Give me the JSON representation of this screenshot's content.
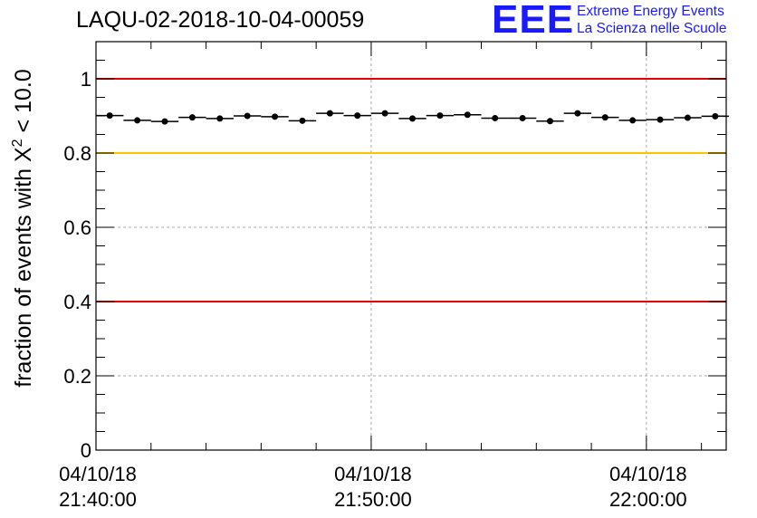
{
  "header": {
    "run_title": "LAQU-02-2018-10-04-00059",
    "logo_mark": "EEE",
    "logo_line1": "Extreme Energy Events",
    "logo_line2": "La Scienza nelle Scuole"
  },
  "colors": {
    "threshold_red": "#e00000",
    "threshold_yellow": "#ffc400",
    "logo_blue": "#1a1aff",
    "points": "#000000"
  },
  "chart_data": {
    "type": "scatter",
    "title": "LAQU-02-2018-10-04-00059",
    "xlabel": "",
    "ylabel_prefix": "fraction of events with ",
    "ylabel_symbol": "X",
    "ylabel_superscript": "2",
    "ylabel_suffix": " < 10.0",
    "ylim": [
      0,
      1.1
    ],
    "y_ticks": [
      0,
      0.2,
      0.4,
      0.6,
      0.8,
      1
    ],
    "y_tick_labels": [
      "0",
      "0.2",
      "0.4",
      "0.6",
      "0.8",
      "1"
    ],
    "x_range_minutes": [
      0,
      22.9
    ],
    "x_ticks": [
      {
        "minutes": 0,
        "date": "04/10/18",
        "time": "21:40:00"
      },
      {
        "minutes": 10,
        "date": "04/10/18",
        "time": "21:50:00"
      },
      {
        "minutes": 20,
        "date": "04/10/18",
        "time": "22:00:00"
      }
    ],
    "x_grid": true,
    "y_grid": true,
    "reference_lines": [
      {
        "y": 1.0,
        "color": "#e00000"
      },
      {
        "y": 0.8,
        "color": "#ffc400"
      },
      {
        "y": 0.4,
        "color": "#e00000"
      }
    ],
    "bin_width_minutes": 1.0,
    "series": [
      {
        "name": "fraction",
        "x": [
          0.5,
          1.5,
          2.5,
          3.5,
          4.5,
          5.5,
          6.5,
          7.5,
          8.5,
          9.5,
          10.5,
          11.5,
          12.5,
          13.5,
          14.5,
          15.5,
          16.5,
          17.5,
          18.5,
          19.5,
          20.5,
          21.5,
          22.5
        ],
        "values": [
          0.901,
          0.888,
          0.885,
          0.896,
          0.893,
          0.9,
          0.898,
          0.887,
          0.907,
          0.901,
          0.907,
          0.893,
          0.901,
          0.903,
          0.894,
          0.894,
          0.886,
          0.907,
          0.896,
          0.888,
          0.89,
          0.895,
          0.899
        ]
      }
    ]
  }
}
